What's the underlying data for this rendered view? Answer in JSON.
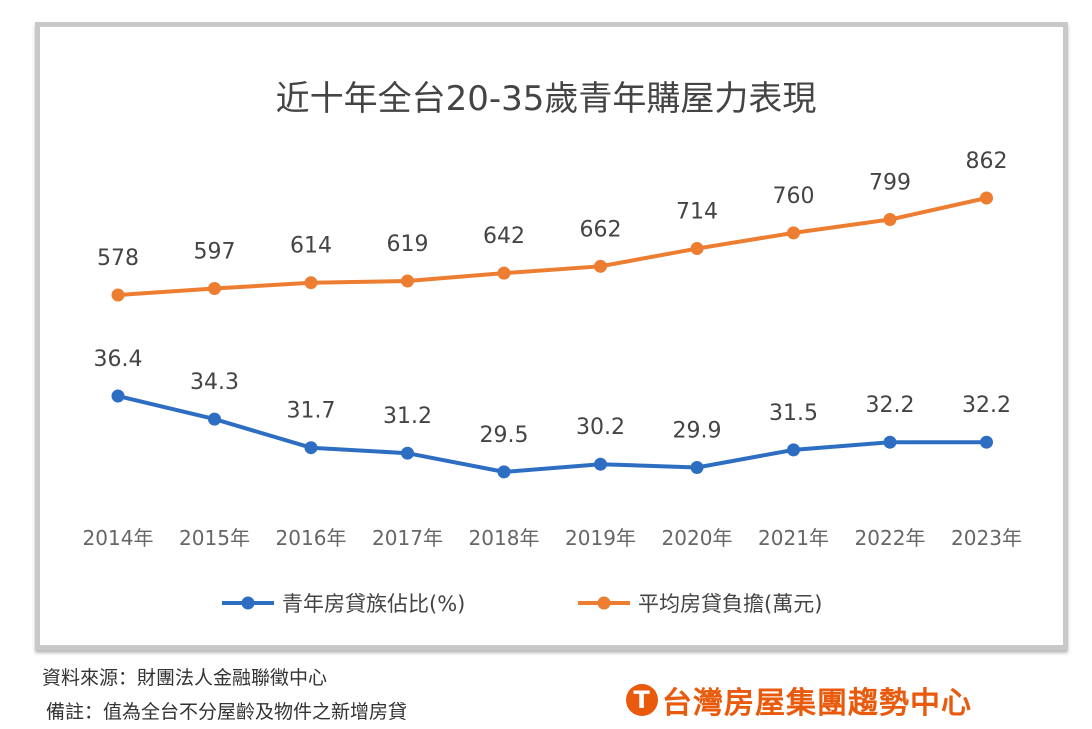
{
  "chart_data": {
    "type": "line",
    "title": "近十年全台20-35歲青年購屋力表現",
    "categories": [
      "2014年",
      "2015年",
      "2016年",
      "2017年",
      "2018年",
      "2019年",
      "2020年",
      "2021年",
      "2022年",
      "2023年"
    ],
    "series": [
      {
        "name": "青年房貸族佔比(%)",
        "color": "#2e6ec2",
        "values": [
          36.4,
          34.3,
          31.7,
          31.2,
          29.5,
          30.2,
          29.9,
          31.5,
          32.2,
          32.2
        ],
        "labels": [
          "36.4",
          "34.3",
          "31.7",
          "31.2",
          "29.5",
          "30.2",
          "29.9",
          "31.5",
          "32.2",
          "32.2"
        ]
      },
      {
        "name": "平均房貸負擔(萬元)",
        "color": "#ed7d31",
        "values": [
          578,
          597,
          614,
          619,
          642,
          662,
          714,
          760,
          799,
          862
        ],
        "labels": [
          "578",
          "597",
          "614",
          "619",
          "642",
          "662",
          "714",
          "760",
          "799",
          "862"
        ]
      }
    ],
    "legend": "bottom",
    "grid": false
  },
  "footer": {
    "source": "資料來源：財團法人金融聯徵中心",
    "note": "備註：值為全台不分屋齡及物件之新增房貸",
    "brand": "台灣房屋集團趨勢中心",
    "brand_logo": "T"
  }
}
